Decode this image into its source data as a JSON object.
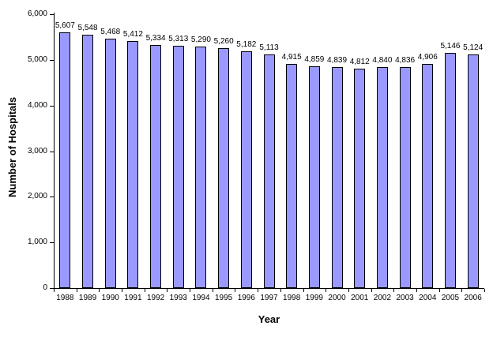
{
  "chart_data": {
    "type": "bar",
    "title": "",
    "xlabel": "Year",
    "ylabel": "Number of Hospitals",
    "categories": [
      "1988",
      "1989",
      "1990",
      "1991",
      "1992",
      "1993",
      "1994",
      "1995",
      "1996",
      "1997",
      "1998",
      "1999",
      "2000",
      "2001",
      "2002",
      "2003",
      "2004",
      "2005",
      "2006"
    ],
    "values": [
      5607,
      5548,
      5468,
      5412,
      5334,
      5313,
      5290,
      5260,
      5182,
      5113,
      4915,
      4859,
      4839,
      4812,
      4840,
      4836,
      4906,
      5146,
      5124
    ],
    "value_labels": [
      "5,607",
      "5,548",
      "5,468",
      "5,412",
      "5,334",
      "5,313",
      "5,290",
      "5,260",
      "5,182",
      "5,113",
      "4,915",
      "4,859",
      "4,839",
      "4,812",
      "4,840",
      "4,836",
      "4,906",
      "5,146",
      "5,124"
    ],
    "ylim": [
      0,
      6000
    ],
    "ytick_step": 1000,
    "ytick_labels": [
      "0",
      "1,000",
      "2,000",
      "3,000",
      "4,000",
      "5,000",
      "6,000"
    ],
    "grid": false,
    "legend_position": "none",
    "bar_color": "#9999FF",
    "bar_border_color": "#000000",
    "background_color": "#FFFFFF"
  }
}
